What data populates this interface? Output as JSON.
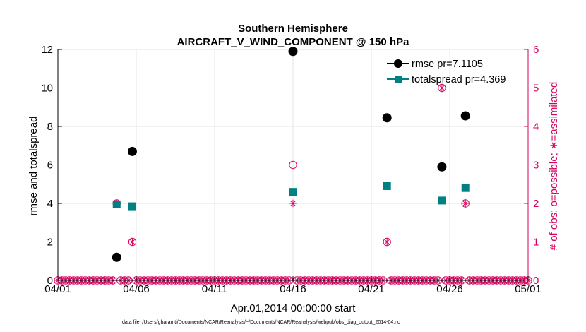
{
  "chart_data": {
    "type": "scatter",
    "title": "Southern Hemisphere",
    "subtitle": "AIRCRAFT_V_WIND_COMPONENT @ 150 hPa",
    "xlabel": "Apr.01,2014 00:00:00 start",
    "ylabel_left": "rmse and totalspread",
    "ylabel_right": "# of obs: o=possible; ∗=assimilated",
    "footer": "data file: /Users/gharamti/Documents/NCAR/Reanalysis/~/Documents/NCAR/Reanalysis/webpub/obs_diag_output_2014-04.nc",
    "xlim": [
      0,
      30
    ],
    "ylim_left": [
      0,
      12
    ],
    "ylim_right": [
      0,
      6
    ],
    "x_ticks": [
      0,
      5,
      10,
      15,
      20,
      25,
      30
    ],
    "x_tick_labels": [
      "04/01",
      "04/06",
      "04/11",
      "04/16",
      "04/21",
      "04/26",
      "05/01"
    ],
    "y_ticks_left": [
      0,
      2,
      4,
      6,
      8,
      10,
      12
    ],
    "y_tick_labels_left": [
      "0",
      "2",
      "4",
      "6",
      "8",
      "10",
      "12"
    ],
    "y_ticks_right": [
      0,
      1,
      2,
      3,
      4,
      5,
      6
    ],
    "y_tick_labels_right": [
      "0",
      "1",
      "2",
      "3",
      "4",
      "5",
      "6"
    ],
    "grid": true,
    "legend_position": "top-right",
    "series": [
      {
        "name": "rmse pr=7.1105",
        "color": "#000000",
        "marker": "circle",
        "axis": "left",
        "points": [
          [
            3.75,
            1.2
          ],
          [
            4.75,
            6.7
          ],
          [
            15.0,
            11.9
          ],
          [
            21.0,
            8.45
          ],
          [
            24.5,
            5.9
          ],
          [
            26.0,
            8.55
          ]
        ]
      },
      {
        "name": "totalspread pr=4.369",
        "color": "#008080",
        "marker": "square",
        "axis": "left",
        "points": [
          [
            3.75,
            3.95
          ],
          [
            4.75,
            3.85
          ],
          [
            15.0,
            4.6
          ],
          [
            21.0,
            4.9
          ],
          [
            24.5,
            4.15
          ],
          [
            26.0,
            4.8
          ]
        ]
      }
    ],
    "obs_series": {
      "color": "#d6005e",
      "bin_width": 0.25,
      "possible_nonzero": [
        [
          3.75,
          2
        ],
        [
          4.75,
          1
        ],
        [
          15.0,
          3
        ],
        [
          21.0,
          1
        ],
        [
          24.5,
          5
        ],
        [
          26.0,
          2
        ]
      ],
      "assimilated_nonzero": [
        [
          3.75,
          2
        ],
        [
          4.75,
          1
        ],
        [
          15.0,
          2
        ],
        [
          21.0,
          1
        ],
        [
          24.5,
          5
        ],
        [
          26.0,
          2
        ]
      ]
    },
    "colors": {
      "axis": "#000000",
      "right_axis": "#d6005e",
      "grid": "#e6e6e6"
    }
  }
}
